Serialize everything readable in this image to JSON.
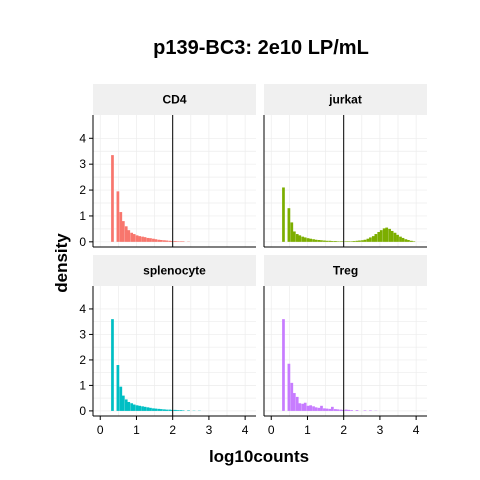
{
  "chart_data": {
    "type": "histogram",
    "title": "p139-BC3: 2e10 LP/mL",
    "xlabel": "log10counts",
    "ylabel": "density",
    "xlim": [
      -0.2,
      4.3
    ],
    "ylim": [
      -0.2,
      4.9
    ],
    "x_ticks": [
      0,
      1,
      2,
      3,
      4
    ],
    "y_ticks": [
      0,
      1,
      2,
      3,
      4
    ],
    "bin_width": 0.075,
    "threshold_line_x": 2,
    "grid": true,
    "facets": [
      {
        "name": "CD4",
        "color": "#F8766D",
        "bins": [
          {
            "x": 0.3,
            "y": 3.35
          },
          {
            "x": 0.45,
            "y": 1.95
          },
          {
            "x": 0.53,
            "y": 1.15
          },
          {
            "x": 0.6,
            "y": 0.8
          },
          {
            "x": 0.68,
            "y": 0.6
          },
          {
            "x": 0.75,
            "y": 0.45
          },
          {
            "x": 0.83,
            "y": 0.35
          },
          {
            "x": 0.9,
            "y": 0.3
          },
          {
            "x": 0.98,
            "y": 0.25
          },
          {
            "x": 1.05,
            "y": 0.22
          },
          {
            "x": 1.13,
            "y": 0.2
          },
          {
            "x": 1.2,
            "y": 0.18
          },
          {
            "x": 1.28,
            "y": 0.15
          },
          {
            "x": 1.35,
            "y": 0.14
          },
          {
            "x": 1.43,
            "y": 0.12
          },
          {
            "x": 1.5,
            "y": 0.1
          },
          {
            "x": 1.58,
            "y": 0.08
          },
          {
            "x": 1.65,
            "y": 0.07
          },
          {
            "x": 1.73,
            "y": 0.06
          },
          {
            "x": 1.8,
            "y": 0.05
          },
          {
            "x": 1.88,
            "y": 0.04
          },
          {
            "x": 1.95,
            "y": 0.03
          },
          {
            "x": 2.03,
            "y": 0.03
          },
          {
            "x": 2.1,
            "y": 0.02
          },
          {
            "x": 2.18,
            "y": 0.02
          },
          {
            "x": 2.25,
            "y": 0.02
          },
          {
            "x": 2.4,
            "y": 0.01
          }
        ]
      },
      {
        "name": "jurkat",
        "color": "#7CAE00",
        "bins": [
          {
            "x": 0.3,
            "y": 2.1
          },
          {
            "x": 0.45,
            "y": 1.3
          },
          {
            "x": 0.53,
            "y": 0.75
          },
          {
            "x": 0.6,
            "y": 0.4
          },
          {
            "x": 0.68,
            "y": 0.3
          },
          {
            "x": 0.75,
            "y": 0.25
          },
          {
            "x": 0.83,
            "y": 0.2
          },
          {
            "x": 0.9,
            "y": 0.17
          },
          {
            "x": 0.98,
            "y": 0.14
          },
          {
            "x": 1.05,
            "y": 0.12
          },
          {
            "x": 1.13,
            "y": 0.1
          },
          {
            "x": 1.2,
            "y": 0.08
          },
          {
            "x": 1.28,
            "y": 0.07
          },
          {
            "x": 1.35,
            "y": 0.06
          },
          {
            "x": 1.43,
            "y": 0.05
          },
          {
            "x": 1.5,
            "y": 0.04
          },
          {
            "x": 1.58,
            "y": 0.04
          },
          {
            "x": 1.65,
            "y": 0.03
          },
          {
            "x": 1.73,
            "y": 0.03
          },
          {
            "x": 1.8,
            "y": 0.02
          },
          {
            "x": 1.88,
            "y": 0.02
          },
          {
            "x": 1.95,
            "y": 0.02
          },
          {
            "x": 2.03,
            "y": 0.02
          },
          {
            "x": 2.1,
            "y": 0.02
          },
          {
            "x": 2.18,
            "y": 0.02
          },
          {
            "x": 2.25,
            "y": 0.03
          },
          {
            "x": 2.33,
            "y": 0.04
          },
          {
            "x": 2.4,
            "y": 0.05
          },
          {
            "x": 2.48,
            "y": 0.06
          },
          {
            "x": 2.55,
            "y": 0.08
          },
          {
            "x": 2.63,
            "y": 0.12
          },
          {
            "x": 2.7,
            "y": 0.17
          },
          {
            "x": 2.78,
            "y": 0.22
          },
          {
            "x": 2.85,
            "y": 0.3
          },
          {
            "x": 2.93,
            "y": 0.38
          },
          {
            "x": 3.0,
            "y": 0.45
          },
          {
            "x": 3.08,
            "y": 0.52
          },
          {
            "x": 3.15,
            "y": 0.55
          },
          {
            "x": 3.23,
            "y": 0.5
          },
          {
            "x": 3.3,
            "y": 0.42
          },
          {
            "x": 3.38,
            "y": 0.35
          },
          {
            "x": 3.45,
            "y": 0.27
          },
          {
            "x": 3.53,
            "y": 0.2
          },
          {
            "x": 3.6,
            "y": 0.15
          },
          {
            "x": 3.68,
            "y": 0.1
          },
          {
            "x": 3.75,
            "y": 0.07
          },
          {
            "x": 3.83,
            "y": 0.04
          },
          {
            "x": 3.9,
            "y": 0.02
          }
        ]
      },
      {
        "name": "splenocyte",
        "color": "#00BFC4",
        "bins": [
          {
            "x": 0.3,
            "y": 3.6
          },
          {
            "x": 0.45,
            "y": 1.8
          },
          {
            "x": 0.53,
            "y": 0.95
          },
          {
            "x": 0.6,
            "y": 0.6
          },
          {
            "x": 0.68,
            "y": 0.45
          },
          {
            "x": 0.75,
            "y": 0.35
          },
          {
            "x": 0.83,
            "y": 0.3
          },
          {
            "x": 0.9,
            "y": 0.25
          },
          {
            "x": 0.98,
            "y": 0.22
          },
          {
            "x": 1.05,
            "y": 0.2
          },
          {
            "x": 1.13,
            "y": 0.18
          },
          {
            "x": 1.2,
            "y": 0.16
          },
          {
            "x": 1.28,
            "y": 0.14
          },
          {
            "x": 1.35,
            "y": 0.12
          },
          {
            "x": 1.43,
            "y": 0.1
          },
          {
            "x": 1.5,
            "y": 0.09
          },
          {
            "x": 1.58,
            "y": 0.08
          },
          {
            "x": 1.65,
            "y": 0.07
          },
          {
            "x": 1.73,
            "y": 0.06
          },
          {
            "x": 1.8,
            "y": 0.05
          },
          {
            "x": 1.88,
            "y": 0.05
          },
          {
            "x": 1.95,
            "y": 0.04
          },
          {
            "x": 2.03,
            "y": 0.04
          },
          {
            "x": 2.1,
            "y": 0.03
          },
          {
            "x": 2.18,
            "y": 0.03
          },
          {
            "x": 2.25,
            "y": 0.02
          },
          {
            "x": 2.4,
            "y": 0.02
          },
          {
            "x": 2.55,
            "y": 0.01
          },
          {
            "x": 2.7,
            "y": 0.01
          }
        ]
      },
      {
        "name": "Treg",
        "color": "#C77CFF",
        "bins": [
          {
            "x": 0.3,
            "y": 3.6
          },
          {
            "x": 0.45,
            "y": 1.85
          },
          {
            "x": 0.53,
            "y": 1.1
          },
          {
            "x": 0.6,
            "y": 0.7
          },
          {
            "x": 0.68,
            "y": 0.55
          },
          {
            "x": 0.75,
            "y": 0.3
          },
          {
            "x": 0.83,
            "y": 0.28
          },
          {
            "x": 0.9,
            "y": 0.32
          },
          {
            "x": 0.98,
            "y": 0.2
          },
          {
            "x": 1.05,
            "y": 0.22
          },
          {
            "x": 1.13,
            "y": 0.18
          },
          {
            "x": 1.2,
            "y": 0.14
          },
          {
            "x": 1.28,
            "y": 0.12
          },
          {
            "x": 1.35,
            "y": 0.2
          },
          {
            "x": 1.43,
            "y": 0.1
          },
          {
            "x": 1.5,
            "y": 0.09
          },
          {
            "x": 1.58,
            "y": 0.08
          },
          {
            "x": 1.65,
            "y": 0.16
          },
          {
            "x": 1.73,
            "y": 0.07
          },
          {
            "x": 1.8,
            "y": 0.06
          },
          {
            "x": 1.88,
            "y": 0.05
          },
          {
            "x": 1.95,
            "y": 0.04
          },
          {
            "x": 2.03,
            "y": 0.05
          },
          {
            "x": 2.1,
            "y": 0.04
          },
          {
            "x": 2.18,
            "y": 0.03
          },
          {
            "x": 2.33,
            "y": 0.03
          },
          {
            "x": 2.55,
            "y": 0.02
          },
          {
            "x": 2.7,
            "y": 0.02
          },
          {
            "x": 2.85,
            "y": 0.01
          }
        ]
      }
    ]
  }
}
